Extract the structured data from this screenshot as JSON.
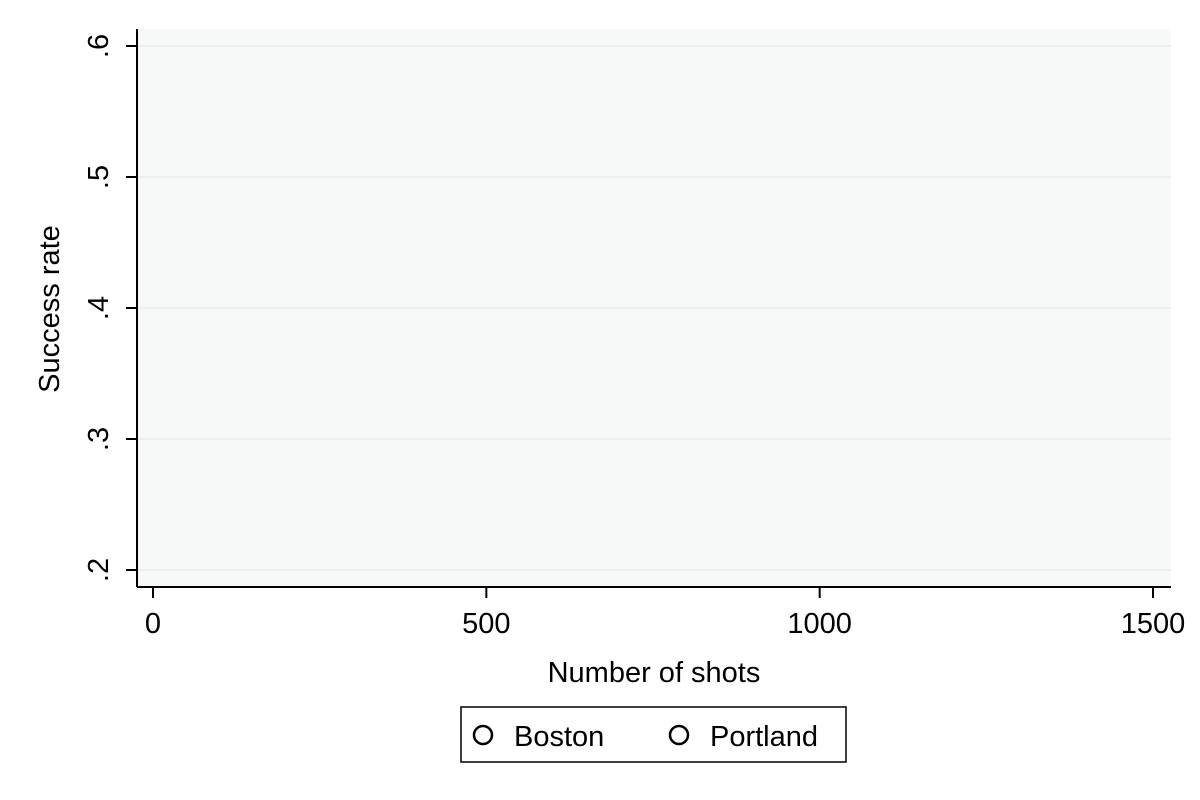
{
  "chart_data": {
    "type": "scatter",
    "title": "",
    "xlabel": "Number of shots",
    "ylabel": "Success rate",
    "xlim": [
      0,
      1500
    ],
    "ylim": [
      0.2,
      0.6
    ],
    "x_ticks": [
      {
        "value": 0,
        "label": "0"
      },
      {
        "value": 500,
        "label": "500"
      },
      {
        "value": 1000,
        "label": "1000"
      },
      {
        "value": 1500,
        "label": "1500"
      }
    ],
    "y_ticks": [
      {
        "value": 0.2,
        "label": ".2"
      },
      {
        "value": 0.3,
        "label": ".3"
      },
      {
        "value": 0.4,
        "label": ".4"
      },
      {
        "value": 0.5,
        "label": ".5"
      },
      {
        "value": 0.6,
        "label": ".6"
      }
    ],
    "grid": "horizontal",
    "legend_position": "bottom",
    "series": [
      {
        "name": "Boston",
        "marker": "hollow-circle",
        "color": "#000000",
        "points": []
      },
      {
        "name": "Portland",
        "marker": "hollow-circle",
        "color": "#000000",
        "points": []
      }
    ],
    "colors": {
      "plot_background": "#f7f9f9",
      "gridline": "#e6ecec",
      "axis": "#000000"
    }
  }
}
